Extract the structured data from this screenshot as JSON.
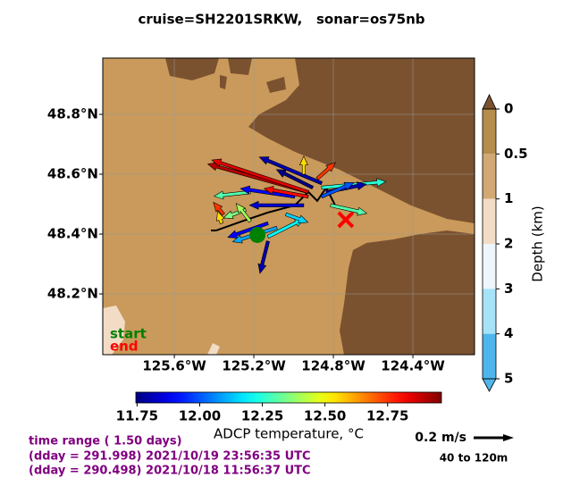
{
  "chart_data": {
    "type": "vector_map",
    "title": "cruise=SH2201SRKW,   sonar=os75nb",
    "xlim": [
      -125.96,
      -124.09
    ],
    "ylim": [
      47.997,
      48.988
    ],
    "xticks": [
      {
        "value": -125.6,
        "label": "125.6°W"
      },
      {
        "value": -125.2,
        "label": "125.2°W"
      },
      {
        "value": -124.8,
        "label": "124.8°W"
      },
      {
        "value": -124.4,
        "label": "124.4°W"
      }
    ],
    "yticks": [
      {
        "value": 48.8,
        "label": "48.8°N"
      },
      {
        "value": 48.6,
        "label": "48.6°N"
      },
      {
        "value": 48.4,
        "label": "48.4°N"
      },
      {
        "value": 48.2,
        "label": "48.2°N"
      }
    ],
    "grid": true,
    "colormap": "jet",
    "temperature_label": "ADCP temperature, °C",
    "temperature_lim": [
      11.745,
      12.965
    ],
    "temperature_ticks": [
      {
        "value": 11.75,
        "label": "11.75"
      },
      {
        "value": 12.0,
        "label": "12.00"
      },
      {
        "value": 12.25,
        "label": "12.25"
      },
      {
        "value": 12.5,
        "label": "12.50"
      },
      {
        "value": 12.75,
        "label": "12.75"
      }
    ],
    "depth_label": "Depth (km)",
    "depth_ticks": [
      0,
      0.5,
      1,
      2,
      3,
      4,
      5
    ],
    "depth_colors": [
      "#b58d4c",
      "#d2a874",
      "#f2dcc6",
      "#eef6fb",
      "#a6e3f8",
      "#4eb6ec"
    ],
    "depth_extend_colors": [
      "#7b5230",
      "#4eb6ec"
    ],
    "track": {
      "lon": [
        -125.389,
        -125.263,
        -125.129,
        -124.994,
        -124.926,
        -124.881,
        -124.836,
        -124.791
      ],
      "lat": [
        48.412,
        48.442,
        48.472,
        48.496,
        48.541,
        48.511,
        48.555,
        48.496
      ]
    },
    "start": {
      "lon": -125.182,
      "lat": 48.397,
      "label": "start",
      "color": "#008000"
    },
    "end": {
      "lon": -124.738,
      "lat": 48.448,
      "label": "end",
      "color": "#ff0000"
    },
    "arrows": [
      {
        "lon": -124.926,
        "lat": 48.54,
        "u": -0.5,
        "v": 0.14,
        "temperature": 12.9
      },
      {
        "lon": -124.926,
        "lat": 48.54,
        "u": -0.48,
        "v": 0.16,
        "temperature": 12.85
      },
      {
        "lon": -124.859,
        "lat": 48.57,
        "u": -0.31,
        "v": 0.13,
        "temperature": 11.8
      },
      {
        "lon": -124.859,
        "lat": 48.555,
        "u": 0.32,
        "v": 0.03,
        "temperature": 12.25
      },
      {
        "lon": -124.836,
        "lat": 48.54,
        "u": 0.2,
        "v": 0.04,
        "temperature": 11.8
      },
      {
        "lon": -124.814,
        "lat": 48.496,
        "u": 0.18,
        "v": -0.04,
        "temperature": 12.3
      },
      {
        "lon": -125.129,
        "lat": 48.376,
        "u": -0.04,
        "v": -0.16,
        "temperature": 11.8
      },
      {
        "lon": -125.129,
        "lat": 48.391,
        "u": 0.18,
        "v": 0.09,
        "temperature": 12.2
      },
      {
        "lon": -124.949,
        "lat": 48.6,
        "u": 0,
        "v": 0.09,
        "temperature": 12.55
      },
      {
        "lon": -124.881,
        "lat": 48.585,
        "u": 0.09,
        "v": 0.08,
        "temperature": 12.75
      },
      {
        "lon": -125.353,
        "lat": 48.466,
        "u": -0.05,
        "v": 0.06,
        "temperature": 12.75
      },
      {
        "lon": -125.362,
        "lat": 48.436,
        "u": -0.02,
        "v": 0.06,
        "temperature": 12.55
      },
      {
        "lon": -125.218,
        "lat": 48.54,
        "u": -0.18,
        "v": -0.02,
        "temperature": 12.3
      },
      {
        "lon": -124.994,
        "lat": 48.525,
        "u": -0.27,
        "v": 0.04,
        "temperature": 11.9
      },
      {
        "lon": -124.926,
        "lat": 48.525,
        "u": -0.22,
        "v": 0.04,
        "temperature": 12.8
      },
      {
        "lon": -124.949,
        "lat": 48.496,
        "u": -0.27,
        "v": 0,
        "temperature": 11.85
      },
      {
        "lon": -125.129,
        "lat": 48.436,
        "u": -0.2,
        "v": -0.07,
        "temperature": 11.9
      },
      {
        "lon": -125.084,
        "lat": 48.421,
        "u": -0.22,
        "v": -0.07,
        "temperature": 12.1
      },
      {
        "lon": -124.904,
        "lat": 48.555,
        "u": -0.18,
        "v": 0.09,
        "temperature": 11.75
      },
      {
        "lon": -124.859,
        "lat": 48.525,
        "u": 0.16,
        "v": 0.07,
        "temperature": 12.0
      },
      {
        "lon": -125.241,
        "lat": 48.481,
        "u": -0.11,
        "v": -0.04,
        "temperature": 12.35
      },
      {
        "lon": -125.039,
        "lat": 48.466,
        "u": 0.11,
        "v": -0.04,
        "temperature": 12.15
      },
      {
        "lon": -125.218,
        "lat": 48.442,
        "u": -0.07,
        "v": 0.09,
        "temperature": 12.4
      }
    ],
    "scale": {
      "value": 0.2,
      "label": "0.2 m/s"
    },
    "depth_range": "40 to 120m",
    "time_lines": [
      "time range ( 1.50 days)",
      "(dday = 291.998) 2021/10/19 23:56:35 UTC",
      "(dday = 290.498) 2021/10/18 11:56:37 UTC"
    ]
  }
}
